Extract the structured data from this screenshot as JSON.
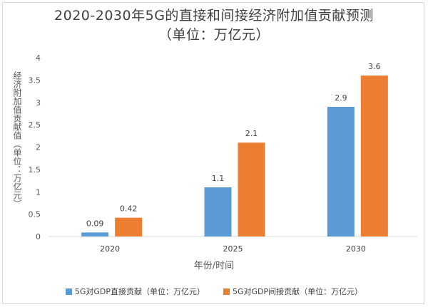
{
  "chart_data": {
    "type": "bar",
    "title": "2020-2030年5G的直接和间接经济附加值贡献预测",
    "subtitle": "（单位：万亿元）",
    "xlabel": "年份/时间",
    "ylabel": "经济附加值贡献值（单位：万亿元）",
    "categories": [
      "2020",
      "2025",
      "2030"
    ],
    "ylim": [
      0,
      4
    ],
    "yticks": [
      "0",
      "0.5",
      "1",
      "1.5",
      "2",
      "2.5",
      "3",
      "3.5",
      "4"
    ],
    "grid": false,
    "legend_position": "bottom",
    "series": [
      {
        "name": "5G对GDP直接贡献（单位：万亿元）",
        "values": [
          0.09,
          1.1,
          2.9
        ],
        "labels": [
          "0.09",
          "1.1",
          "2.9"
        ],
        "color": "#5b9bd5"
      },
      {
        "name": "5G对GDP间接贡献（单位：万亿元）",
        "values": [
          0.42,
          2.1,
          3.6
        ],
        "labels": [
          "0.42",
          "2.1",
          "3.6"
        ],
        "color": "#ed7d31"
      }
    ]
  }
}
